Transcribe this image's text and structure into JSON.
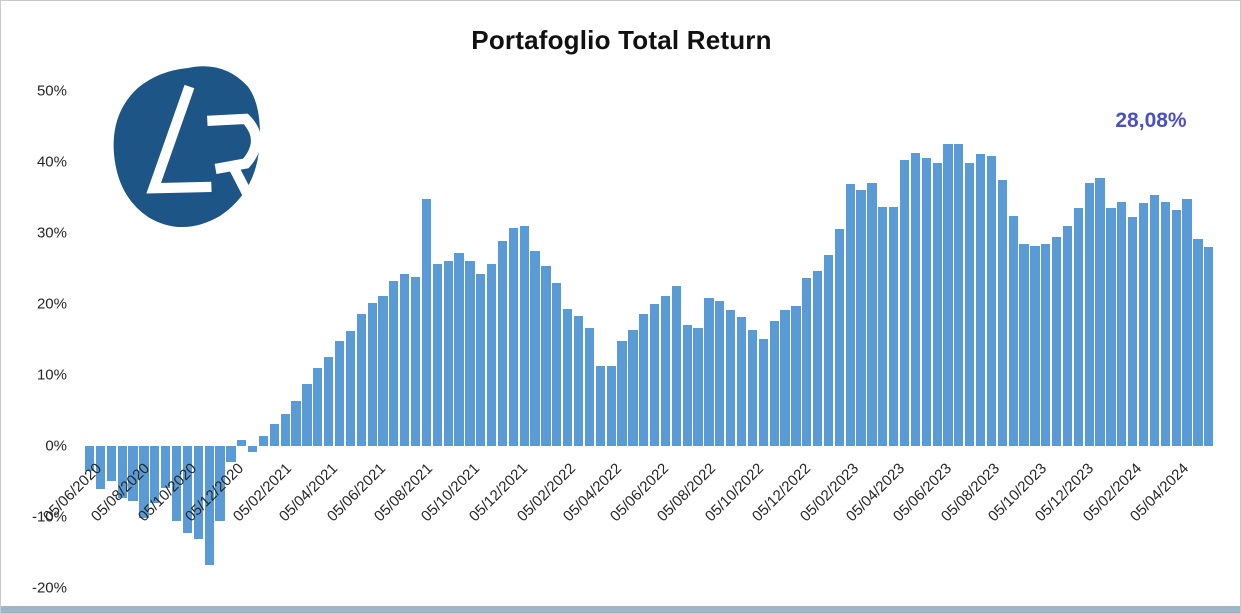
{
  "header": {
    "title": "Portafoglio Total Return",
    "final_value_label": "28,08%"
  },
  "logo": {
    "letters": "LR",
    "bg_color": "#1d5587",
    "letter_color": "#ffffff"
  },
  "colors": {
    "bar": "#5B9BD5",
    "final_label": "#4b51c1",
    "axis_text": "#262626",
    "title_text": "#111111",
    "frame_border": "#c9c9c9",
    "bottom_strip": "#9fb6c8"
  },
  "chart_data": {
    "type": "bar",
    "title": "Portafoglio Total Return",
    "ylabel": "",
    "xlabel": "",
    "ylim": [
      -20,
      50
    ],
    "grid": false,
    "legend": "none",
    "y_ticks": [
      "50%",
      "40%",
      "30%",
      "20%",
      "10%",
      "0%",
      "-10%",
      "-20%"
    ],
    "y_tick_values": [
      50,
      40,
      30,
      20,
      10,
      0,
      -10,
      -20
    ],
    "x_tick_labels": [
      "05/06/2020",
      "05/08/2020",
      "05/10/2020",
      "05/12/2020",
      "05/02/2021",
      "05/04/2021",
      "05/06/2021",
      "05/08/2021",
      "05/10/2021",
      "05/12/2021",
      "05/02/2022",
      "05/04/2022",
      "05/06/2022",
      "05/08/2022",
      "05/10/2022",
      "05/12/2022",
      "05/02/2023",
      "05/04/2023",
      "05/06/2023",
      "05/08/2023",
      "05/10/2023",
      "05/12/2023",
      "05/02/2024",
      "05/04/2024"
    ],
    "x": [
      "05/06/2020",
      "19/06/2020",
      "03/07/2020",
      "17/07/2020",
      "31/07/2020",
      "14/08/2020",
      "28/08/2020",
      "11/09/2020",
      "25/09/2020",
      "09/10/2020",
      "23/10/2020",
      "06/11/2020",
      "20/11/2020",
      "04/12/2020",
      "18/12/2020",
      "01/01/2021",
      "15/01/2021",
      "29/01/2021",
      "12/02/2021",
      "26/02/2021",
      "12/03/2021",
      "26/03/2021",
      "09/04/2021",
      "23/04/2021",
      "07/05/2021",
      "21/05/2021",
      "04/06/2021",
      "18/06/2021",
      "02/07/2021",
      "16/07/2021",
      "30/07/2021",
      "13/08/2021",
      "27/08/2021",
      "10/09/2021",
      "24/09/2021",
      "08/10/2021",
      "22/10/2021",
      "05/11/2021",
      "19/11/2021",
      "03/12/2021",
      "17/12/2021",
      "31/12/2021",
      "14/01/2022",
      "28/01/2022",
      "11/02/2022",
      "25/02/2022",
      "11/03/2022",
      "25/03/2022",
      "08/04/2022",
      "22/04/2022",
      "06/05/2022",
      "20/05/2022",
      "03/06/2022",
      "17/06/2022",
      "01/07/2022",
      "15/07/2022",
      "29/07/2022",
      "12/08/2022",
      "26/08/2022",
      "09/09/2022",
      "23/09/2022",
      "07/10/2022",
      "21/10/2022",
      "04/11/2022",
      "18/11/2022",
      "02/12/2022",
      "16/12/2022",
      "30/12/2022",
      "13/01/2023",
      "27/01/2023",
      "10/02/2023",
      "24/02/2023",
      "10/03/2023",
      "24/03/2023",
      "07/04/2023",
      "21/04/2023",
      "05/05/2023",
      "19/05/2023",
      "02/06/2023",
      "16/06/2023",
      "30/06/2023",
      "14/07/2023",
      "28/07/2023",
      "11/08/2023",
      "25/08/2023",
      "08/09/2023",
      "22/09/2023",
      "06/10/2023",
      "20/10/2023",
      "03/11/2023",
      "17/11/2023",
      "01/12/2023",
      "15/12/2023",
      "29/12/2023",
      "12/01/2024",
      "26/01/2024",
      "09/02/2024",
      "23/02/2024",
      "08/03/2024",
      "22/03/2024",
      "05/04/2024",
      "19/04/2024",
      "03/05/2024",
      "17/05/2024"
    ],
    "values": [
      -3.5,
      -6.1,
      -4.9,
      -7.3,
      -7.7,
      -10.1,
      -8,
      -5.9,
      -10.6,
      -12.2,
      -13.1,
      -16.7,
      -10.5,
      -2.3,
      0.8,
      -0.9,
      1.4,
      3.1,
      4.5,
      6.3,
      8.7,
      11,
      12.5,
      14.8,
      16.2,
      18.6,
      20.1,
      21.1,
      23.2,
      24.2,
      23.8,
      34.8,
      25.6,
      26.1,
      27.2,
      26.1,
      24.2,
      25.6,
      28.9,
      30.7,
      31,
      27.5,
      25.4,
      23,
      19.3,
      18.3,
      16.6,
      11.3,
      11.2,
      14.8,
      16.4,
      18.6,
      20,
      21.1,
      22.5,
      17,
      16.6,
      20.8,
      20.4,
      19.2,
      18.2,
      16.3,
      15.1,
      17.6,
      19.1,
      19.7,
      23.7,
      24.6,
      26.9,
      30.5,
      36.9,
      36,
      37.1,
      33.7,
      33.7,
      40.3,
      41.2,
      40.6,
      39.9,
      42.6,
      42.5,
      39.8,
      41.1,
      40.8,
      37.4,
      32.4,
      28.5,
      28.2,
      28.4,
      29.5,
      31,
      33.5,
      37,
      37.8,
      33.5,
      34.4,
      32.3,
      34.2,
      35.4,
      34.4,
      33.3,
      34.8,
      29.2,
      28.08
    ],
    "final_value": "28,08%"
  }
}
